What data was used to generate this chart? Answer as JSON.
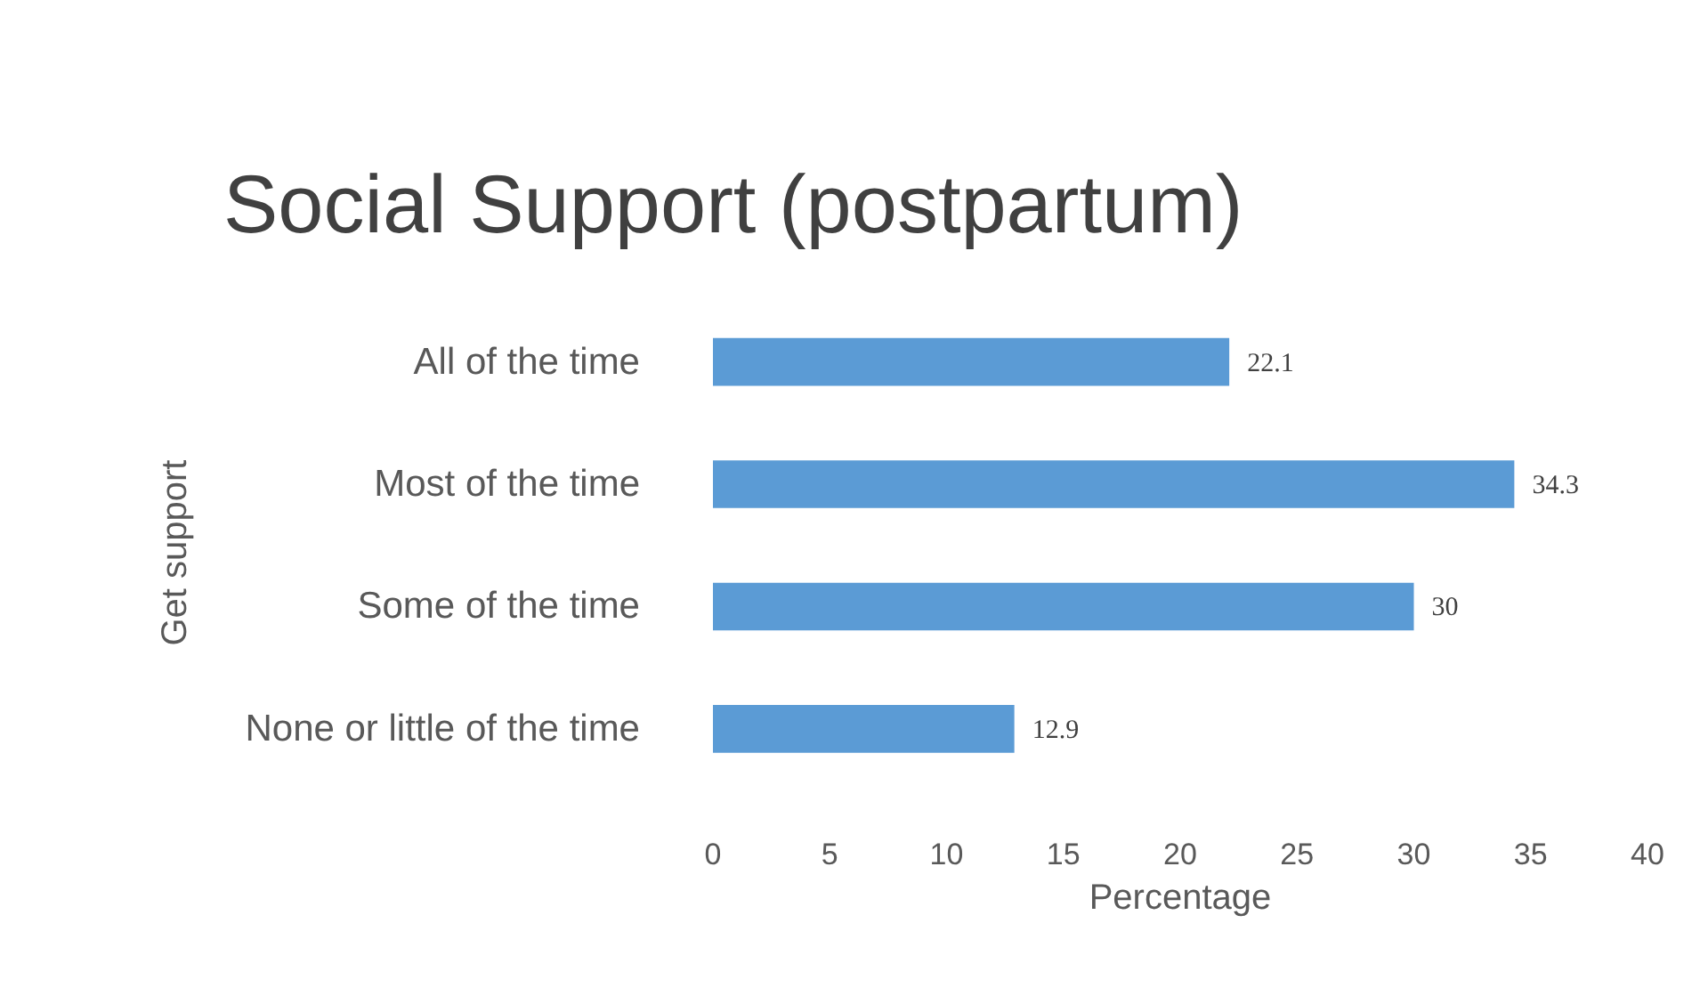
{
  "chart_data": {
    "type": "bar",
    "orientation": "horizontal",
    "title": "Social Support (postpartum)",
    "xlabel": "Percentage",
    "ylabel": "Get support",
    "categories": [
      "All of the time",
      "Most of the time",
      "Some of the time",
      "None or little of the time"
    ],
    "values": [
      22.1,
      34.3,
      30,
      12.9
    ],
    "color": "#5b9bd5",
    "xlim": [
      0,
      40
    ],
    "xticks": [
      0,
      5,
      10,
      15,
      20,
      25,
      30,
      35,
      40
    ],
    "data_labels": true
  }
}
